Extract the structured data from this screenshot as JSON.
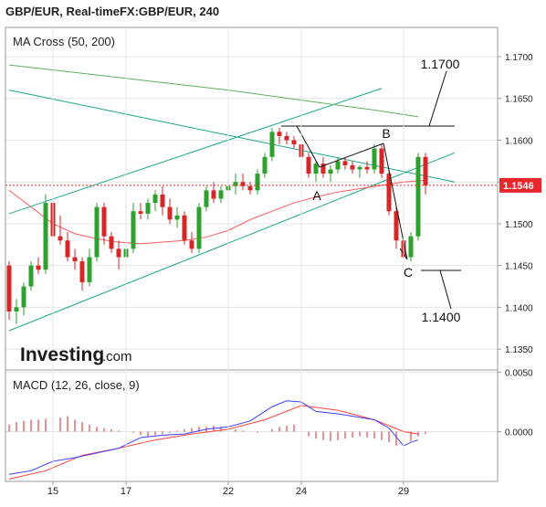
{
  "header": {
    "title": "GBP/EUR, Real-timeFX:GBP/EUR, 240"
  },
  "watermark": {
    "brand": "Investing",
    "suffix": ".com"
  },
  "colors": {
    "bull": "#2ea02e",
    "bear": "#d62728",
    "ma50": "#ff5a5a",
    "ma200": "#5fb05f",
    "trend": "#1aa88a",
    "macd_line": "#3d3dff",
    "signal_line": "#ff4040",
    "hist": "#d62728",
    "price_tag_bg": "#e8262b",
    "grid": "#e4e4e4",
    "frame": "#9a9a9a"
  },
  "chart_data": [
    {
      "type": "candlestick",
      "indicator_label": "MA Cross (50, 200)",
      "x_ticks": [
        {
          "label": "15",
          "x": 6
        },
        {
          "label": "17",
          "x": 16
        },
        {
          "label": "22",
          "x": 30
        },
        {
          "label": "24",
          "x": 40
        },
        {
          "label": "29",
          "x": 54
        }
      ],
      "ylim": [
        1.1325,
        1.1735
      ],
      "y_ticks": [
        "1.1700",
        "1.1650",
        "1.1600",
        "1.1550",
        "1.1500",
        "1.1450",
        "1.1400",
        "1.1350"
      ],
      "candles": [
        [
          1.145,
          1.1455,
          1.1385,
          1.1395
        ],
        [
          1.1395,
          1.141,
          1.138,
          1.14
        ],
        [
          1.14,
          1.143,
          1.139,
          1.1425
        ],
        [
          1.1425,
          1.1455,
          1.142,
          1.145
        ],
        [
          1.145,
          1.146,
          1.144,
          1.1445
        ],
        [
          1.1445,
          1.1535,
          1.144,
          1.1525
        ],
        [
          1.1525,
          1.153,
          1.148,
          1.1485
        ],
        [
          1.1485,
          1.151,
          1.1475,
          1.148
        ],
        [
          1.148,
          1.149,
          1.1455,
          1.146
        ],
        [
          1.146,
          1.147,
          1.1445,
          1.1455
        ],
        [
          1.1455,
          1.146,
          1.142,
          1.143
        ],
        [
          1.143,
          1.147,
          1.1425,
          1.146
        ],
        [
          1.146,
          1.1525,
          1.1455,
          1.152
        ],
        [
          1.152,
          1.1525,
          1.1475,
          1.1485
        ],
        [
          1.1485,
          1.149,
          1.1465,
          1.147
        ],
        [
          1.147,
          1.148,
          1.1445,
          1.146
        ],
        [
          1.146,
          1.1475,
          1.145,
          1.147
        ],
        [
          1.147,
          1.1525,
          1.1465,
          1.1515
        ],
        [
          1.1515,
          1.1525,
          1.1505,
          1.1512
        ],
        [
          1.1512,
          1.153,
          1.1505,
          1.1525
        ],
        [
          1.1525,
          1.154,
          1.1515,
          1.1535
        ],
        [
          1.1535,
          1.1545,
          1.151,
          1.152
        ],
        [
          1.152,
          1.153,
          1.15,
          1.1505
        ],
        [
          1.1505,
          1.152,
          1.1495,
          1.151
        ],
        [
          1.151,
          1.1515,
          1.1475,
          1.148
        ],
        [
          1.148,
          1.149,
          1.1465,
          1.147
        ],
        [
          1.147,
          1.1525,
          1.1465,
          1.152
        ],
        [
          1.152,
          1.1545,
          1.1515,
          1.154
        ],
        [
          1.154,
          1.155,
          1.1525,
          1.153
        ],
        [
          1.153,
          1.1545,
          1.1525,
          1.154
        ],
        [
          1.154,
          1.155,
          1.1495,
          1.1545
        ],
        [
          1.1545,
          1.156,
          1.1535,
          1.155
        ],
        [
          1.155,
          1.156,
          1.154,
          1.1545
        ],
        [
          1.1545,
          1.155,
          1.1535,
          1.154
        ],
        [
          1.154,
          1.1565,
          1.1535,
          1.156
        ],
        [
          1.156,
          1.1585,
          1.1555,
          1.158
        ],
        [
          1.158,
          1.1615,
          1.1575,
          1.161
        ],
        [
          1.161,
          1.1615,
          1.1595,
          1.1605
        ],
        [
          1.1605,
          1.161,
          1.1595,
          1.16
        ],
        [
          1.16,
          1.1605,
          1.159,
          1.1595
        ],
        [
          1.1595,
          1.16,
          1.1575,
          1.158
        ],
        [
          1.158,
          1.1585,
          1.1555,
          1.156
        ],
        [
          1.156,
          1.1575,
          1.155,
          1.1572
        ],
        [
          1.1572,
          1.158,
          1.1555,
          1.156
        ],
        [
          1.156,
          1.157,
          1.155,
          1.1565
        ],
        [
          1.1565,
          1.158,
          1.156,
          1.1575
        ],
        [
          1.1575,
          1.158,
          1.1565,
          1.157
        ],
        [
          1.157,
          1.1575,
          1.156,
          1.1565
        ],
        [
          1.1565,
          1.157,
          1.1555,
          1.1568
        ],
        [
          1.1568,
          1.1575,
          1.156,
          1.1565
        ],
        [
          1.1565,
          1.1595,
          1.156,
          1.159
        ],
        [
          1.159,
          1.1595,
          1.1555,
          1.156
        ],
        [
          1.156,
          1.1565,
          1.151,
          1.1515
        ],
        [
          1.1515,
          1.152,
          1.147,
          1.148
        ],
        [
          1.148,
          1.1485,
          1.145,
          1.146
        ],
        [
          1.146,
          1.149,
          1.1455,
          1.1485
        ],
        [
          1.1485,
          1.1585,
          1.148,
          1.158
        ],
        [
          1.158,
          1.1585,
          1.1535,
          1.1546
        ]
      ],
      "ma50": [
        [
          0,
          1.154
        ],
        [
          3,
          1.152
        ],
        [
          6,
          1.15
        ],
        [
          9,
          1.1488
        ],
        [
          12,
          1.1482
        ],
        [
          15,
          1.1478
        ],
        [
          18,
          1.1476
        ],
        [
          21,
          1.1478
        ],
        [
          24,
          1.148
        ],
        [
          27,
          1.1484
        ],
        [
          30,
          1.1492
        ],
        [
          33,
          1.1505
        ],
        [
          36,
          1.1515
        ],
        [
          39,
          1.1525
        ],
        [
          42,
          1.1532
        ],
        [
          45,
          1.1538
        ],
        [
          48,
          1.1542
        ],
        [
          51,
          1.1546
        ],
        [
          54,
          1.155
        ],
        [
          57,
          1.1552
        ]
      ],
      "ma200": [
        [
          0,
          1.169
        ],
        [
          10,
          1.168
        ],
        [
          20,
          1.167
        ],
        [
          30,
          1.166
        ],
        [
          40,
          1.1648
        ],
        [
          50,
          1.1636
        ],
        [
          56,
          1.1628
        ]
      ],
      "trend_lines": [
        {
          "from": [
            0,
            1.1512
          ],
          "to": [
            51,
            1.1662
          ]
        },
        {
          "from": [
            0,
            1.1372
          ],
          "to": [
            61,
            1.1585
          ]
        },
        {
          "from": [
            0,
            1.166
          ],
          "to": [
            61,
            1.155
          ]
        }
      ],
      "current_price": "1.1546",
      "annotations": [
        {
          "label": "A",
          "x": 42,
          "price": 1.1558
        },
        {
          "label": "B",
          "x": 51,
          "price": 1.1595
        },
        {
          "label": "C",
          "x": 54.5,
          "price": 1.1452
        },
        {
          "label": "1.1700"
        },
        {
          "label": "1.1400"
        }
      ]
    },
    {
      "type": "macd",
      "indicator_label": "MACD (12, 26, close, 9)",
      "ylim": [
        -0.0042,
        0.0052
      ],
      "y_ticks": [
        "0.0050",
        "0.0000"
      ],
      "macd": [
        [
          0,
          -0.0036
        ],
        [
          3,
          -0.0033
        ],
        [
          6,
          -0.0025
        ],
        [
          9,
          -0.0022
        ],
        [
          12,
          -0.0018
        ],
        [
          15,
          -0.0014
        ],
        [
          18,
          -0.0005
        ],
        [
          21,
          -0.0003
        ],
        [
          24,
          -0.0002
        ],
        [
          27,
          0.0002
        ],
        [
          30,
          0.0004
        ],
        [
          33,
          0.0009
        ],
        [
          36,
          0.0021
        ],
        [
          38,
          0.0026
        ],
        [
          40,
          0.0025
        ],
        [
          42,
          0.0017
        ],
        [
          45,
          0.0015
        ],
        [
          48,
          0.0012
        ],
        [
          50,
          0.001
        ],
        [
          52,
          0.0003
        ],
        [
          54,
          -0.0012
        ],
        [
          55,
          -0.0009
        ],
        [
          56,
          -0.0007
        ]
      ],
      "signal": [
        [
          0,
          -0.004
        ],
        [
          5,
          -0.0033
        ],
        [
          10,
          -0.002
        ],
        [
          15,
          -0.0014
        ],
        [
          20,
          -0.0007
        ],
        [
          25,
          -0.0002
        ],
        [
          30,
          0.0002
        ],
        [
          35,
          0.001
        ],
        [
          40,
          0.0022
        ],
        [
          45,
          0.0018
        ],
        [
          50,
          0.001
        ],
        [
          54,
          0.0
        ],
        [
          56,
          -0.0002
        ]
      ],
      "histogram": [
        0.0006,
        0.0008,
        0.0009,
        0.001,
        0.001,
        0.0011,
        0.0012,
        0.0012,
        0.0013,
        0.001,
        0.0008,
        0.0006,
        0.0004,
        0.0003,
        0.0002,
        0.0001,
        0.0001,
        -0.0001,
        -0.0003,
        -0.0004,
        -0.0003,
        -0.0002,
        -0.0001,
        0.0001,
        0.0002,
        0.0003,
        0.0004,
        0.0004,
        0.0005,
        0.0004,
        0.0003,
        0.0002,
        0.0001,
        0.0,
        -0.0001,
        0.0,
        0.0002,
        0.0004,
        0.0005,
        0.0006,
        -0.0002,
        -0.0004,
        -0.0006,
        -0.0007,
        -0.0008,
        -0.0007,
        -0.0006,
        -0.0005,
        -0.0004,
        -0.0005,
        -0.0006,
        -0.0007,
        -0.0009,
        -0.0012,
        -0.001,
        -0.0008,
        -0.0004,
        -0.0002
      ]
    }
  ]
}
